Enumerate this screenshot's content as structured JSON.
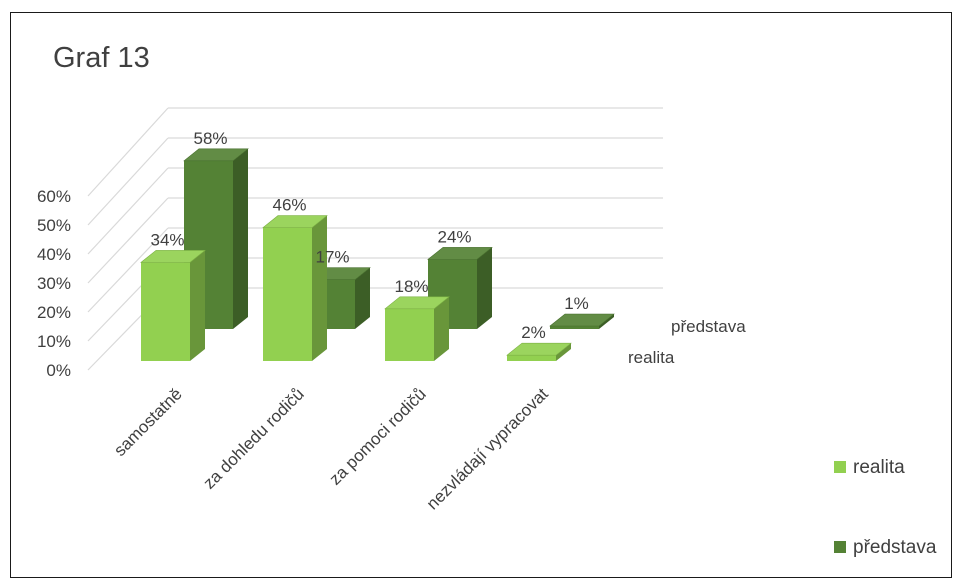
{
  "chart_data": {
    "type": "bar",
    "variant": "3d-column",
    "title": "Graf 13",
    "xlabel": "",
    "ylabel": "",
    "ylim": [
      0,
      0.6
    ],
    "ytick_labels": [
      "0%",
      "10%",
      "20%",
      "30%",
      "40%",
      "50%",
      "60%"
    ],
    "grid": true,
    "legend_position": "right",
    "categories": [
      "samostatně",
      "za dohledu rodičů",
      "za pomoci rodičů",
      "nezvládají vypracovat"
    ],
    "series": [
      {
        "name": "realita",
        "color": "#92d050",
        "values": [
          0.34,
          0.46,
          0.18,
          0.02
        ],
        "labels": [
          "34%",
          "46%",
          "18%",
          "2%"
        ]
      },
      {
        "name": "představa",
        "color": "#548235",
        "values": [
          0.58,
          0.17,
          0.24,
          0.01
        ],
        "labels": [
          "58%",
          "17%",
          "24%",
          "1%"
        ]
      }
    ]
  }
}
